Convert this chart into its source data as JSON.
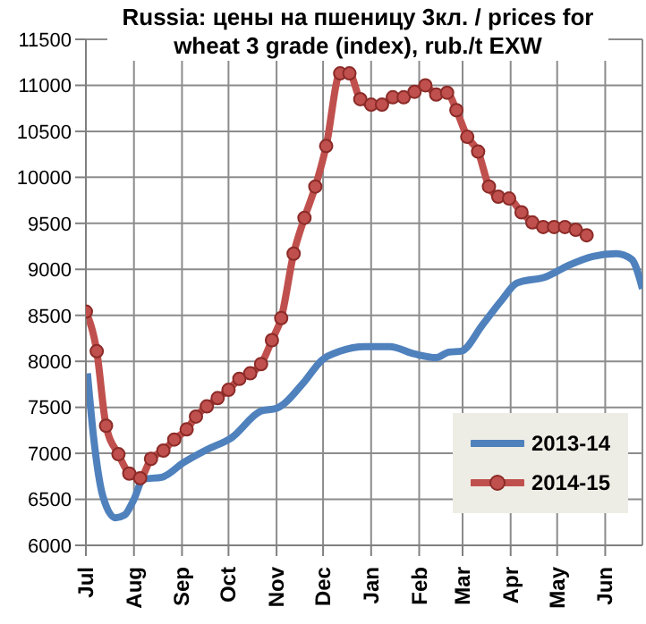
{
  "chart_data": {
    "type": "line",
    "title": "Russia: цены на пшеницу 3кл. / prices for wheat 3 grade (index), rub./t EXW",
    "xlim": [
      "2014-07-01",
      "2015-06-25"
    ],
    "xticks": [
      {
        "value": "2014-07-01",
        "label": "Jul"
      },
      {
        "value": "2014-08-01",
        "label": "Aug"
      },
      {
        "value": "2014-09-01",
        "label": "Sep"
      },
      {
        "value": "2014-10-01",
        "label": "Oct"
      },
      {
        "value": "2014-11-01",
        "label": "Nov"
      },
      {
        "value": "2014-12-01",
        "label": "Dec"
      },
      {
        "value": "2015-01-01",
        "label": "Jan"
      },
      {
        "value": "2015-02-01",
        "label": "Feb"
      },
      {
        "value": "2015-03-01",
        "label": "Mar"
      },
      {
        "value": "2015-04-01",
        "label": "Apr"
      },
      {
        "value": "2015-05-01",
        "label": "May"
      },
      {
        "value": "2015-06-01",
        "label": "Jun"
      }
    ],
    "ylim": [
      6000,
      11500
    ],
    "yticks": [
      6000,
      6500,
      7000,
      7500,
      8000,
      8500,
      9000,
      9500,
      10000,
      10500,
      11000,
      11500
    ],
    "grid": true,
    "legend": "bottom right",
    "series": [
      {
        "name": "2013-14",
        "color": "#4f81bd",
        "marker": "none",
        "x": [
          "2014-07-02",
          "2014-07-06",
          "2014-07-12",
          "2014-07-20",
          "2014-07-26",
          "2014-08-01",
          "2014-08-07",
          "2014-08-19",
          "2014-09-02",
          "2014-09-17",
          "2014-10-03",
          "2014-10-22",
          "2014-11-01",
          "2014-11-19",
          "2014-11-30",
          "2014-12-12",
          "2014-12-28",
          "2015-01-13",
          "2015-01-29",
          "2015-02-12",
          "2015-02-20",
          "2015-02-28",
          "2015-03-14",
          "2015-03-26",
          "2015-04-05",
          "2015-04-24",
          "2015-05-08",
          "2015-05-24",
          "2015-06-08",
          "2015-06-18",
          "2015-06-25"
        ],
        "values": [
          7870,
          7170,
          6530,
          6300,
          6330,
          6500,
          6720,
          6740,
          6900,
          7040,
          7170,
          7460,
          7490,
          7780,
          8010,
          8110,
          8160,
          8160,
          8080,
          8040,
          8100,
          8110,
          8400,
          8660,
          8850,
          8920,
          9040,
          9140,
          9170,
          9110,
          8790
        ]
      },
      {
        "name": "2014-15",
        "color": "#c0504d",
        "marker": "circle",
        "x": [
          "2014-07-01",
          "2014-07-08",
          "2014-07-14",
          "2014-07-22",
          "2014-07-29",
          "2014-08-05",
          "2014-08-12",
          "2014-08-20",
          "2014-08-27",
          "2014-09-04",
          "2014-09-10",
          "2014-09-17",
          "2014-09-24",
          "2014-10-01",
          "2014-10-08",
          "2014-10-15",
          "2014-10-22",
          "2014-10-29",
          "2014-11-04",
          "2014-11-12",
          "2014-11-19",
          "2014-11-26",
          "2014-12-03",
          "2014-12-12",
          "2014-12-18",
          "2014-12-25",
          "2015-01-01",
          "2015-01-08",
          "2015-01-15",
          "2015-01-22",
          "2015-01-29",
          "2015-02-05",
          "2015-02-12",
          "2015-02-19",
          "2015-02-25",
          "2015-03-04",
          "2015-03-11",
          "2015-03-18",
          "2015-03-24",
          "2015-03-31",
          "2015-04-08",
          "2015-04-15",
          "2015-04-22",
          "2015-04-29",
          "2015-05-06",
          "2015-05-13",
          "2015-05-20"
        ],
        "values": [
          8540,
          8110,
          7300,
          6990,
          6780,
          6730,
          6940,
          7030,
          7150,
          7260,
          7400,
          7510,
          7600,
          7690,
          7810,
          7870,
          7970,
          8230,
          8470,
          9170,
          9560,
          9900,
          10340,
          11130,
          11130,
          10850,
          10790,
          10790,
          10870,
          10870,
          10930,
          11000,
          10900,
          10920,
          10730,
          10440,
          10280,
          9900,
          9790,
          9770,
          9620,
          9510,
          9460,
          9460,
          9460,
          9430,
          9370
        ]
      }
    ]
  }
}
